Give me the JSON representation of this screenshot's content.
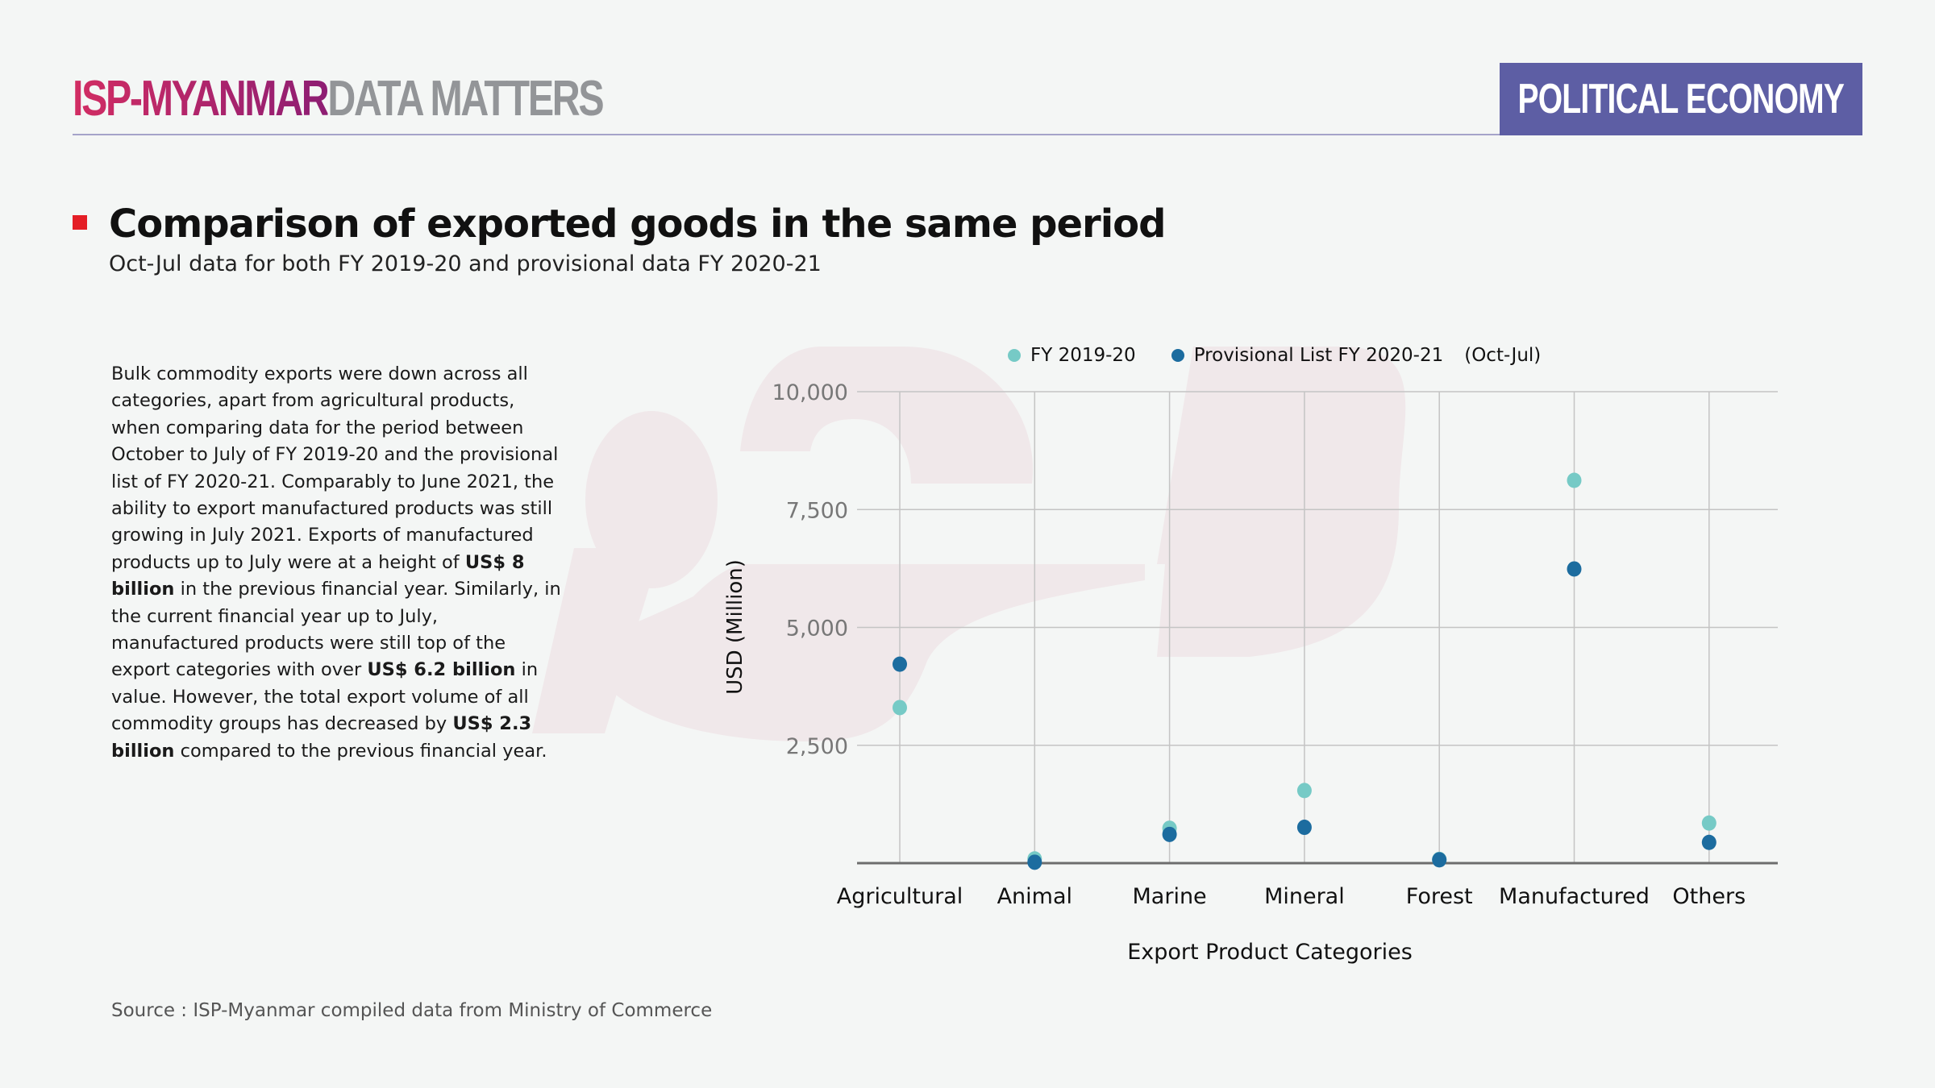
{
  "header": {
    "brand_primary": "ISP-MYANMAR",
    "brand_secondary": "DATA MATTERS",
    "section_badge": "POLITICAL ECONOMY"
  },
  "title": "Comparison of exported goods in the same period",
  "subtitle": "Oct-Jul data for both FY 2019-20 and provisional data FY 2020-21",
  "body": {
    "parts": [
      {
        "text": "Bulk commodity exports were down across all categories, apart from agricultural products, when comparing data for the period between October to July of FY 2019-20 and the provisional list of FY 2020-21. Comparably to June 2021, the ability to export manufactured products was still growing in July 2021. Exports of manufactured products up to July were at a height of ",
        "bold": false
      },
      {
        "text": "US$ 8 billion",
        "bold": true
      },
      {
        "text": " in the previous financial year. Similarly, in the current financial year up to July, manufactured products were still top of the export categories with over ",
        "bold": false
      },
      {
        "text": "US$ 6.2 billion",
        "bold": true
      },
      {
        "text": " in value. However, the total export volume of all commodity groups has decreased by ",
        "bold": false
      },
      {
        "text": "US$ 2.3 billion",
        "bold": true
      },
      {
        "text": " compared to the previous financial year.",
        "bold": false
      }
    ]
  },
  "source": "Source : ISP-Myanmar compiled data from Ministry of Commerce",
  "colors": {
    "series_2019": "#76cac6",
    "series_2020": "#1c6c9f",
    "accent_red": "#e41e26",
    "badge": "#5d5ea4",
    "watermark": "#f0e8ea"
  },
  "chart_data": {
    "type": "scatter",
    "title": "",
    "xlabel": "Export Product Categories",
    "ylabel": "USD (Million)",
    "categories": [
      "Agricultural",
      "Animal",
      "Marine",
      "Mineral",
      "Forest",
      "Manufactured",
      "Others"
    ],
    "ylim": [
      0,
      10000
    ],
    "yticks": [
      2500,
      5000,
      7500,
      10000
    ],
    "ytick_labels": [
      "2,500",
      "5,000",
      "7,500",
      "10,000"
    ],
    "grid": true,
    "legend_position": "top",
    "legend_note": "(Oct-Jul)",
    "series": [
      {
        "name": "FY 2019-20",
        "values": [
          3300,
          90,
          740,
          1540,
          80,
          8120,
          850
        ]
      },
      {
        "name": "Provisional List FY 2020-21",
        "values": [
          4220,
          20,
          610,
          760,
          70,
          6240,
          440
        ]
      }
    ]
  }
}
